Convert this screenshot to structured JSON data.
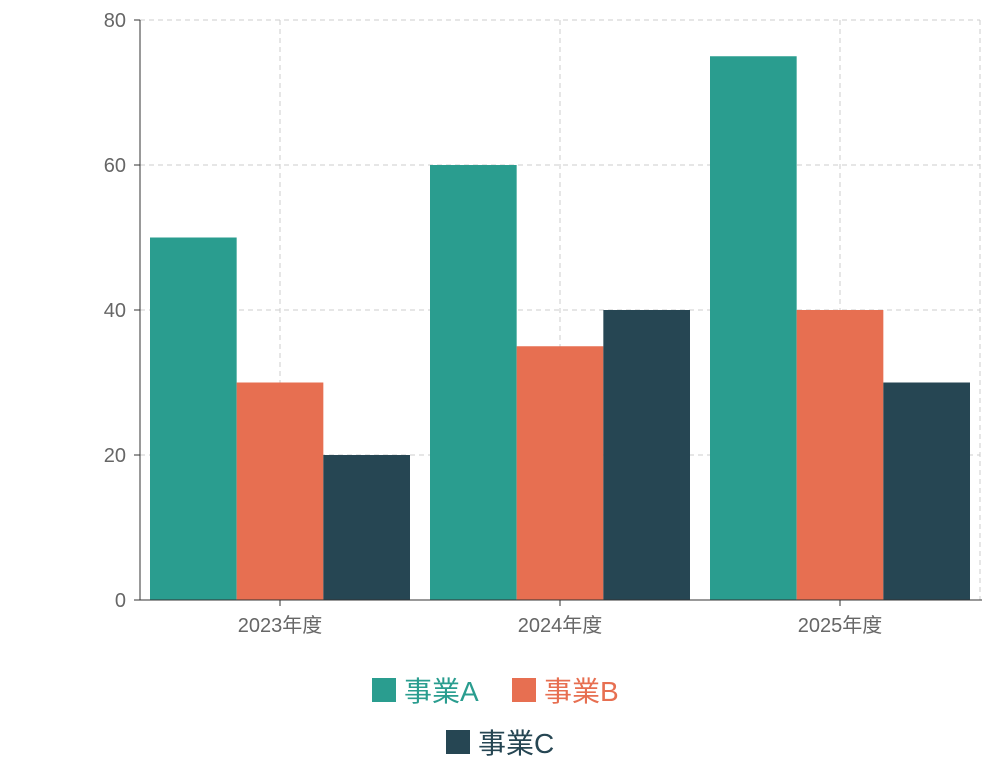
{
  "chart_data": {
    "type": "bar",
    "categories": [
      "2023年度",
      "2024年度",
      "2025年度"
    ],
    "series": [
      {
        "name": "事業A",
        "values": [
          50,
          60,
          75
        ],
        "color": "#2a9d8f"
      },
      {
        "name": "事業B",
        "values": [
          30,
          35,
          40
        ],
        "color": "#e76f51"
      },
      {
        "name": "事業C",
        "values": [
          20,
          40,
          30
        ],
        "color": "#264653"
      }
    ],
    "ylim": [
      0,
      80
    ],
    "yticks": [
      0,
      20,
      40,
      60,
      80
    ],
    "grid": true,
    "legend_position": "bottom",
    "title": "",
    "xlabel": "",
    "ylabel": ""
  }
}
